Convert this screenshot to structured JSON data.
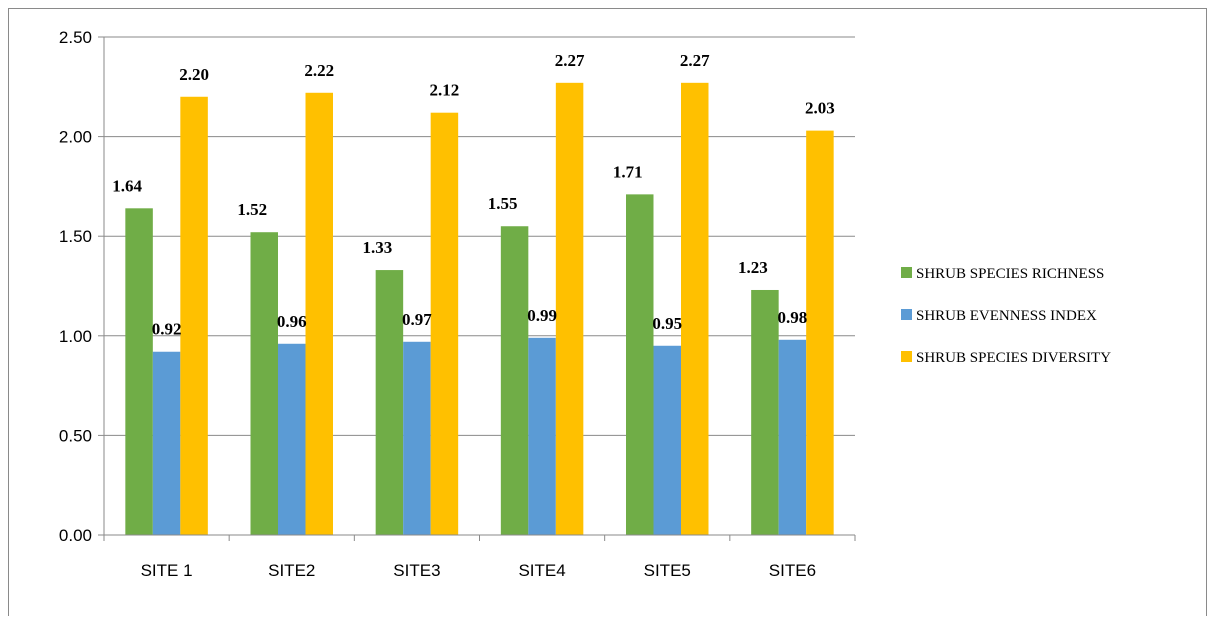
{
  "chart_data": {
    "type": "bar",
    "categories": [
      "SITE 1",
      "SITE2",
      "SITE3",
      "SITE4",
      "SITE5",
      "SITE6"
    ],
    "series": [
      {
        "name": "SHRUB SPECIES RICHNESS",
        "color": "#70ad47",
        "values": [
          1.64,
          1.52,
          1.33,
          1.55,
          1.71,
          1.23
        ],
        "labels": [
          "1.64",
          "1.52",
          "1.33",
          "1.55",
          "1.71",
          "1.23"
        ]
      },
      {
        "name": "SHRUB EVENNESS INDEX",
        "color": "#5b9bd5",
        "values": [
          0.92,
          0.96,
          0.97,
          0.99,
          0.95,
          0.98
        ],
        "labels": [
          "0.92",
          "0.96",
          "0.97",
          "0.99",
          "0.95",
          "0.98"
        ]
      },
      {
        "name": "SHRUB SPECIES DIVERSITY",
        "color": "#ffc000",
        "values": [
          2.2,
          2.22,
          2.12,
          2.27,
          2.27,
          2.03
        ],
        "labels": [
          "2.20",
          "2.22",
          "2.12",
          "2.27",
          "2.27",
          "2.03"
        ]
      }
    ],
    "yticks": [
      "0.00",
      "0.50",
      "1.00",
      "1.50",
      "2.00",
      "2.50"
    ],
    "ylim": [
      0,
      2.5
    ],
    "grid": true,
    "legend_position": "right"
  }
}
